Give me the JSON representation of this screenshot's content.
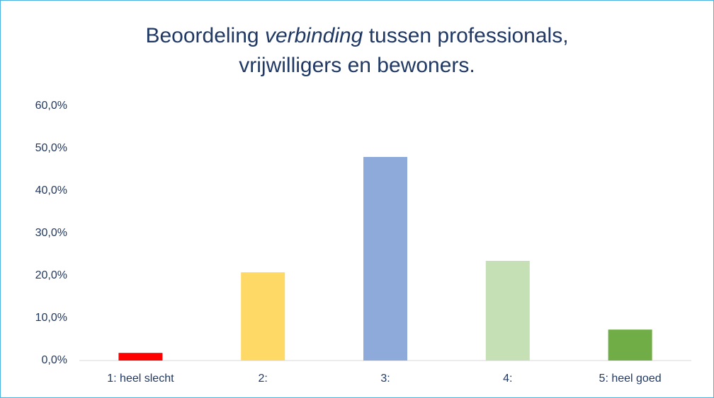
{
  "chart_data": {
    "type": "bar",
    "title": [
      [
        "Beoordeling ",
        "verbinding",
        " tussen professionals,"
      ],
      [
        "vrijwilligers en bewoners."
      ]
    ],
    "categories": [
      "1: heel slecht",
      "2:",
      "3:",
      "4:",
      "5: heel goed"
    ],
    "values": [
      1.8,
      20.8,
      48.0,
      23.5,
      7.3
    ],
    "colors": [
      "#ff0000",
      "#ffd966",
      "#8eaadb",
      "#c5e0b4",
      "#70ad47"
    ],
    "ylim": [
      0,
      60
    ],
    "yticks": [
      {
        "value": 0,
        "label": "0,0%"
      },
      {
        "value": 10,
        "label": "10,0%"
      },
      {
        "value": 20,
        "label": "20,0%"
      },
      {
        "value": 30,
        "label": "30,0%"
      },
      {
        "value": 40,
        "label": "40,0%"
      },
      {
        "value": 50,
        "label": "50,0%"
      },
      {
        "value": 60,
        "label": "60,0%"
      }
    ],
    "grid": false
  }
}
